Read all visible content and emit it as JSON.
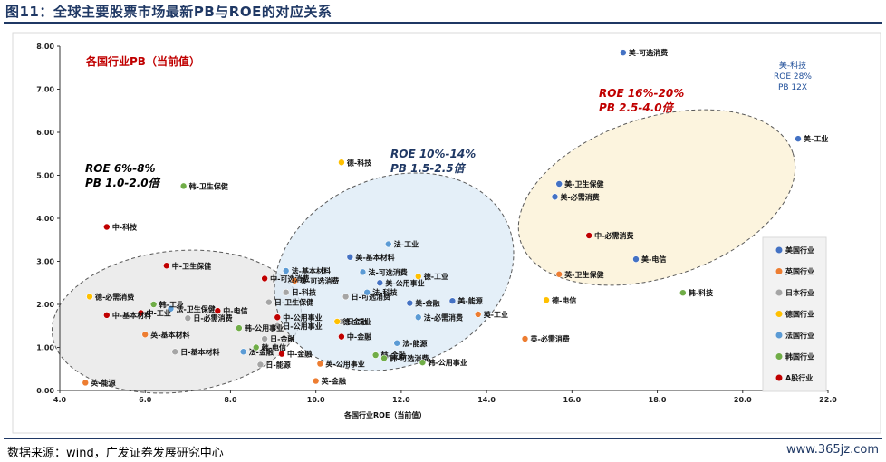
{
  "figure": {
    "title": "图11：全球主要股票市场最新PB与ROE的对应关系",
    "source": "数据来源：wind，广发证券发展研究中心",
    "watermark": "www.365jz.com"
  },
  "chart_data": {
    "type": "scatter",
    "title": "各国行业PB（当前值）",
    "xlabel": "各国行业ROE（当前值）",
    "ylabel": "",
    "xlim": [
      4.0,
      22.0
    ],
    "ylim": [
      0.0,
      8.0
    ],
    "xticks": [
      "4.0",
      "6.0",
      "8.0",
      "10.0",
      "12.0",
      "14.0",
      "16.0",
      "18.0",
      "20.0",
      "22.0"
    ],
    "yticks": [
      "0.00",
      "1.00",
      "2.00",
      "3.00",
      "4.00",
      "5.00",
      "6.00",
      "7.00",
      "8.00"
    ],
    "grid": false,
    "legend_position": "right",
    "series": [
      {
        "name": "美国行业",
        "color": "#4472c4",
        "points": [
          {
            "x": 17.2,
            "y": 7.85,
            "label": "美-可选消费"
          },
          {
            "x": 21.3,
            "y": 5.85,
            "label": "美-工业"
          },
          {
            "x": 15.7,
            "y": 4.8,
            "label": "美-卫生保健"
          },
          {
            "x": 15.6,
            "y": 4.5,
            "label": "美-必需消费"
          },
          {
            "x": 17.5,
            "y": 3.05,
            "label": "美-电信"
          },
          {
            "x": 10.8,
            "y": 3.1,
            "label": "美-基本材料"
          },
          {
            "x": 11.5,
            "y": 2.5,
            "label": "美-公用事业"
          },
          {
            "x": 13.2,
            "y": 2.08,
            "label": "美-能源"
          },
          {
            "x": 12.2,
            "y": 2.03,
            "label": "美-金融"
          }
        ]
      },
      {
        "name": "英国行业",
        "color": "#ed7d31",
        "points": [
          {
            "x": 15.7,
            "y": 2.7,
            "label": "英-卫生保健"
          },
          {
            "x": 14.9,
            "y": 1.2,
            "label": "英-必需消费"
          },
          {
            "x": 13.8,
            "y": 1.77,
            "label": "英-工业"
          },
          {
            "x": 9.5,
            "y": 2.55,
            "label": "英-可选消费"
          },
          {
            "x": 6.0,
            "y": 1.3,
            "label": "英-基本材料"
          },
          {
            "x": 4.6,
            "y": 0.18,
            "label": "英-能源"
          },
          {
            "x": 10.1,
            "y": 0.62,
            "label": "英-公用事业"
          },
          {
            "x": 10.0,
            "y": 0.22,
            "label": "英-金融"
          }
        ]
      },
      {
        "name": "日本行业",
        "color": "#a5a5a5",
        "points": [
          {
            "x": 9.3,
            "y": 2.28,
            "label": "日-科技"
          },
          {
            "x": 8.9,
            "y": 2.05,
            "label": "日-卫生保健"
          },
          {
            "x": 10.7,
            "y": 2.18,
            "label": "日-可选消费"
          },
          {
            "x": 10.6,
            "y": 1.6,
            "label": "日-工业"
          },
          {
            "x": 9.1,
            "y": 1.5,
            "label": "日-公用事业"
          },
          {
            "x": 7.0,
            "y": 1.68,
            "label": "日-必需消费"
          },
          {
            "x": 6.7,
            "y": 0.9,
            "label": "日-基本材料"
          },
          {
            "x": 8.7,
            "y": 0.6,
            "label": "日-能源"
          },
          {
            "x": 8.8,
            "y": 1.2,
            "label": "日-金融"
          }
        ]
      },
      {
        "name": "德国行业",
        "color": "#ffc000",
        "points": [
          {
            "x": 10.6,
            "y": 5.3,
            "label": "德-科技"
          },
          {
            "x": 4.7,
            "y": 2.18,
            "label": "德-必需消费"
          },
          {
            "x": 15.4,
            "y": 2.1,
            "label": "德-电信"
          },
          {
            "x": 12.4,
            "y": 2.65,
            "label": "德-工业"
          },
          {
            "x": 10.5,
            "y": 1.6,
            "label": "德-金融"
          }
        ]
      },
      {
        "name": "法国行业",
        "color": "#5b9bd5",
        "points": [
          {
            "x": 11.7,
            "y": 3.4,
            "label": "法-工业"
          },
          {
            "x": 9.3,
            "y": 2.78,
            "label": "法-基本材料"
          },
          {
            "x": 11.1,
            "y": 2.75,
            "label": "法-可选消费"
          },
          {
            "x": 11.2,
            "y": 2.28,
            "label": "法-科技"
          },
          {
            "x": 12.4,
            "y": 1.7,
            "label": "法-必需消费"
          },
          {
            "x": 11.9,
            "y": 1.1,
            "label": "法-能源"
          },
          {
            "x": 6.6,
            "y": 1.9,
            "label": "法-卫生保健"
          },
          {
            "x": 8.3,
            "y": 0.9,
            "label": "法-金融"
          }
        ]
      },
      {
        "name": "韩国行业",
        "color": "#70ad47",
        "points": [
          {
            "x": 6.9,
            "y": 4.75,
            "label": "韩-卫生保健"
          },
          {
            "x": 18.6,
            "y": 2.27,
            "label": "韩-科技"
          },
          {
            "x": 6.2,
            "y": 2.0,
            "label": "韩-工业"
          },
          {
            "x": 8.2,
            "y": 1.45,
            "label": "韩-公用事业"
          },
          {
            "x": 8.6,
            "y": 1.0,
            "label": "韩-电信"
          },
          {
            "x": 11.4,
            "y": 0.82,
            "label": "韩-金融"
          },
          {
            "x": 11.6,
            "y": 0.75,
            "label": "韩-可选消费"
          },
          {
            "x": 12.5,
            "y": 0.65,
            "label": "韩-公用事业"
          }
        ]
      },
      {
        "name": "A股行业",
        "color": "#c00000",
        "points": [
          {
            "x": 5.1,
            "y": 3.8,
            "label": "中-科技"
          },
          {
            "x": 6.5,
            "y": 2.9,
            "label": "中-卫生保健"
          },
          {
            "x": 16.4,
            "y": 3.6,
            "label": "中-必需消费"
          },
          {
            "x": 5.9,
            "y": 1.8,
            "label": "中-工业"
          },
          {
            "x": 5.1,
            "y": 1.75,
            "label": "中-基本材料"
          },
          {
            "x": 7.7,
            "y": 1.85,
            "label": "中-电信"
          },
          {
            "x": 8.8,
            "y": 2.6,
            "label": "中-可选消费"
          },
          {
            "x": 9.1,
            "y": 1.7,
            "label": "中-公用事业"
          },
          {
            "x": 10.6,
            "y": 1.25,
            "label": "中-金融"
          },
          {
            "x": 9.2,
            "y": 0.85,
            "label": "中-金融"
          }
        ]
      }
    ],
    "annotations": [
      {
        "text": "ROE 16%-20%",
        "style": "red"
      },
      {
        "text": "PB  2.5-4.0倍",
        "style": "red"
      },
      {
        "text": "ROE 10%-14%",
        "style": "blue"
      },
      {
        "text": "PB  1.5-2.5倍",
        "style": "blue"
      },
      {
        "text": "ROE 6%-8%",
        "style": "black"
      },
      {
        "text": "PB  1.0-2.0倍",
        "style": "black"
      },
      {
        "text": "美-科技",
        "style": "small-blue"
      },
      {
        "text": "ROE 28%",
        "style": "small-blue"
      },
      {
        "text": "PB 12X",
        "style": "small-blue"
      }
    ],
    "clusters": [
      {
        "color": "#595959",
        "fill": "#e6e6e6"
      },
      {
        "color": "#595959",
        "fill": "#dbe9f6"
      },
      {
        "color": "#595959",
        "fill": "#fbf0d3"
      }
    ]
  }
}
